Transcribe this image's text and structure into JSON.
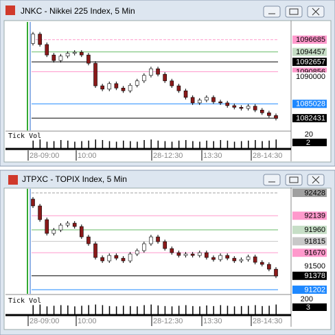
{
  "windows": [
    {
      "title": "JNKC - Nikkei 225 Index, 5 Min",
      "chart": {
        "type": "candlestick",
        "ylim": [
          1080200,
          1099900
        ],
        "open": [
          1096000,
          1097700,
          1095800,
          1093900,
          1092900,
          1093700,
          1094200,
          1094400,
          1093900,
          1092400,
          1088300,
          1087700,
          1088700,
          1087900,
          1087400,
          1088400,
          1089200,
          1090200,
          1091400,
          1090400,
          1089200,
          1088300,
          1087400,
          1086200,
          1085200,
          1085700,
          1086200,
          1085400,
          1085200,
          1084700,
          1084400,
          1084200,
          1084600,
          1083900,
          1083400,
          1082900
        ],
        "close": [
          1097700,
          1095800,
          1093900,
          1092900,
          1093700,
          1094200,
          1094400,
          1093900,
          1092400,
          1088300,
          1087700,
          1088700,
          1087900,
          1087400,
          1088400,
          1089200,
          1090200,
          1091400,
          1090400,
          1089200,
          1088300,
          1087400,
          1086200,
          1085200,
          1085700,
          1086200,
          1085400,
          1085200,
          1084700,
          1084400,
          1084200,
          1084600,
          1083900,
          1083400,
          1082900,
          1082400
        ],
        "up_color": "#ffffff",
        "down_color": "#8b1a1a",
        "price_labels": [
          {
            "value": 1096685,
            "color": "#ff99cc"
          },
          {
            "value": 1094457,
            "color": "#c6dec6"
          },
          {
            "value": 1092657,
            "color": "#000000"
          },
          {
            "value": 1090856,
            "color": "#ff99cc"
          },
          {
            "value": 1090000,
            "color": "#ffffff"
          },
          {
            "value": 1085028,
            "color": "#1e88ff"
          },
          {
            "value": 1082431,
            "color": "#000000"
          }
        ],
        "volume_title": "Tick Vol",
        "volume_labels": [
          20,
          2
        ],
        "volume": [
          14,
          16,
          12,
          13,
          15,
          14,
          12,
          13,
          14,
          16,
          15,
          13,
          12,
          14,
          13,
          12,
          15,
          16,
          14,
          13,
          12,
          14,
          15,
          13,
          12,
          14,
          13,
          15,
          14,
          12,
          13,
          14,
          15,
          13,
          14,
          16
        ],
        "x_labels": [
          "28-09:00",
          "10:00",
          "28-12:30",
          "13:30",
          "28-14:30"
        ]
      }
    },
    {
      "title": "JTPXC - TOPIX Index, 5 Min",
      "chart": {
        "type": "candlestick",
        "ylim": [
          91150,
          92480
        ],
        "open": [
          92350,
          92263,
          92089,
          91915,
          91958,
          92019,
          92045,
          92002,
          91871,
          91784,
          91610,
          91567,
          91636,
          91601,
          91567,
          91654,
          91697,
          91784,
          91871,
          91810,
          91723,
          91671,
          91636,
          91654,
          91636,
          91671,
          91610,
          91584,
          91636,
          91601,
          91567,
          91584,
          91619,
          91549,
          91523,
          91462
        ],
        "close": [
          92263,
          92089,
          91915,
          91958,
          92019,
          92045,
          92002,
          91871,
          91784,
          91610,
          91567,
          91636,
          91601,
          91567,
          91654,
          91697,
          91784,
          91871,
          91810,
          91723,
          91671,
          91636,
          91654,
          91636,
          91671,
          91610,
          91584,
          91636,
          91601,
          91567,
          91584,
          91619,
          91549,
          91523,
          91462,
          91375
        ],
        "up_color": "#ffffff",
        "down_color": "#8b1a1a",
        "price_labels": [
          {
            "value": 92428,
            "color": "#a0a0a0"
          },
          {
            "value": 92139,
            "color": "#ff99cc"
          },
          {
            "value": 91960,
            "color": "#c6dec6"
          },
          {
            "value": 91815,
            "color": "#c8c8c8"
          },
          {
            "value": 91670,
            "color": "#ff99cc"
          },
          {
            "value": 91500,
            "color": "#ffffff"
          },
          {
            "value": 91378,
            "color": "#000000"
          },
          {
            "value": 91202,
            "color": "#1e88ff"
          }
        ],
        "volume_title": "Tick Vol",
        "volume_labels": [
          200,
          3
        ],
        "volume": [
          150,
          160,
          130,
          140,
          150,
          145,
          130,
          140,
          150,
          160,
          150,
          135,
          130,
          140,
          135,
          130,
          150,
          160,
          145,
          135,
          130,
          140,
          150,
          135,
          130,
          145,
          135,
          150,
          140,
          130,
          135,
          140,
          150,
          135,
          140,
          160
        ],
        "x_labels": [
          "28-09:00",
          "10:00",
          "28-12:30",
          "13:30",
          "28-14:30"
        ]
      }
    }
  ]
}
